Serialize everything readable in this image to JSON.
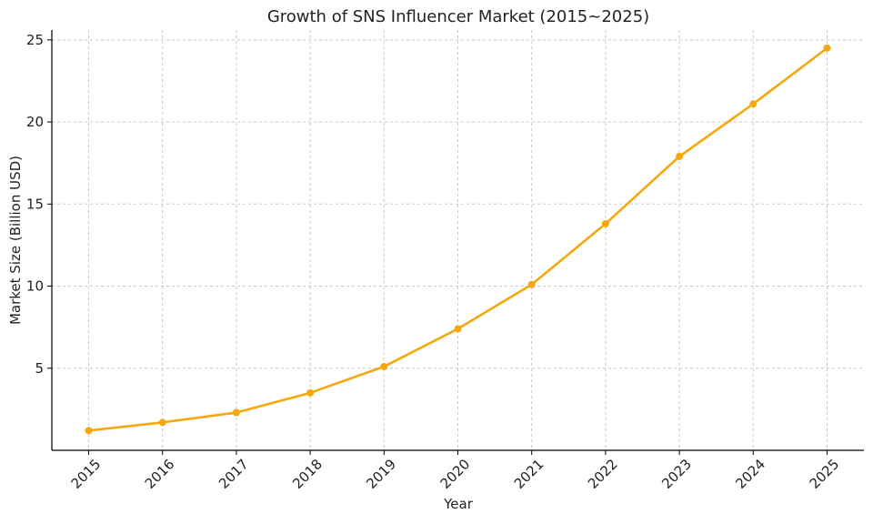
{
  "chart_data": {
    "type": "line",
    "title": "Growth of SNS Influencer Market (2015~2025)",
    "xlabel": "Year",
    "ylabel": "Market Size (Billion USD)",
    "categories": [
      "2015",
      "2016",
      "2017",
      "2018",
      "2019",
      "2020",
      "2021",
      "2022",
      "2023",
      "2024",
      "2025"
    ],
    "series": [
      {
        "values": [
          1.2,
          1.7,
          2.3,
          3.5,
          5.1,
          7.4,
          10.1,
          13.8,
          17.9,
          21.1,
          24.5
        ],
        "color": "#f5a80d"
      }
    ],
    "ylim": [
      0,
      25.6
    ],
    "yticks": [
      5,
      10,
      15,
      20,
      25
    ],
    "grid": true,
    "marker": "circle"
  }
}
